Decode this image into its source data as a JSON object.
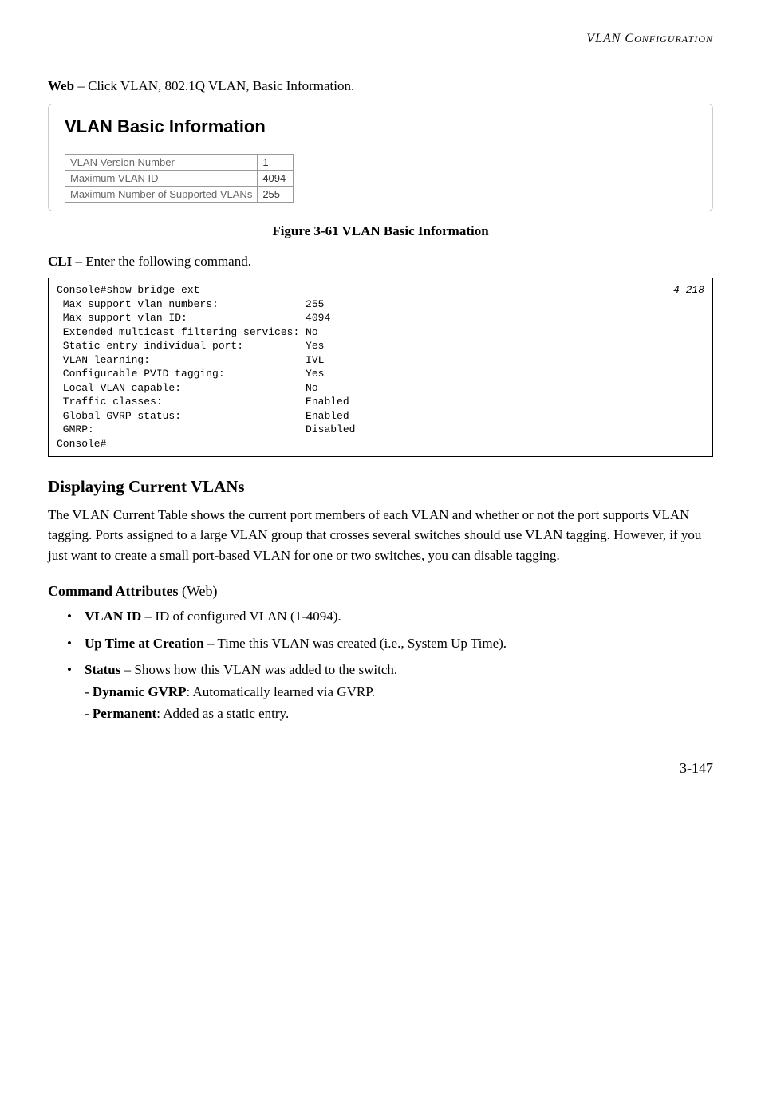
{
  "header": {
    "text": "VLAN C",
    "small": "ONFIGURATION"
  },
  "web_intro": {
    "bold": "Web",
    "rest": " – Click VLAN, 802.1Q VLAN, Basic Information."
  },
  "panel": {
    "title": "VLAN Basic Information",
    "rows": [
      {
        "label": "VLAN Version Number",
        "value": "1"
      },
      {
        "label": "Maximum VLAN ID",
        "value": "4094"
      },
      {
        "label": "Maximum Number of Supported VLANs",
        "value": "255"
      }
    ]
  },
  "figure_caption": "Figure 3-61  VLAN Basic Information",
  "cli_intro": {
    "bold": "CLI",
    "rest": " – Enter the following command."
  },
  "console": {
    "line1_left": "Console#show bridge-ext",
    "line1_right": "4-218",
    "body": " Max support vlan numbers:              255\n Max support vlan ID:                   4094\n Extended multicast filtering services: No\n Static entry individual port:          Yes\n VLAN learning:                         IVL\n Configurable PVID tagging:             Yes\n Local VLAN capable:                    No\n Traffic classes:                       Enabled\n Global GVRP status:                    Enabled\n GMRP:                                  Disabled\nConsole#"
  },
  "section_heading": "Displaying Current VLANs",
  "section_paragraph": "The VLAN Current Table shows the current port members of each VLAN and whether or not the port supports VLAN tagging. Ports assigned to a large VLAN group that crosses several switches should use VLAN tagging. However, if you just want to create a small port-based VLAN for one or two switches, you can disable tagging.",
  "command_attrs": {
    "heading_bold": "Command Attributes",
    "heading_paren": " (Web)",
    "items": [
      {
        "bold": "VLAN ID",
        "rest": " – ID of configured VLAN (1-4094)."
      },
      {
        "bold": "Up Time at Creation",
        "rest": " – Time this VLAN was created (i.e., System Up Time)."
      },
      {
        "bold": "Status",
        "rest": " – Shows how this VLAN was added to the switch.",
        "subs": [
          {
            "dash": "- ",
            "bold": "Dynamic GVRP",
            "rest": ": Automatically learned via GVRP."
          },
          {
            "dash": "- ",
            "bold": "Permanent",
            "rest": ": Added as a static entry."
          }
        ]
      }
    ]
  },
  "page_num": "3-147"
}
